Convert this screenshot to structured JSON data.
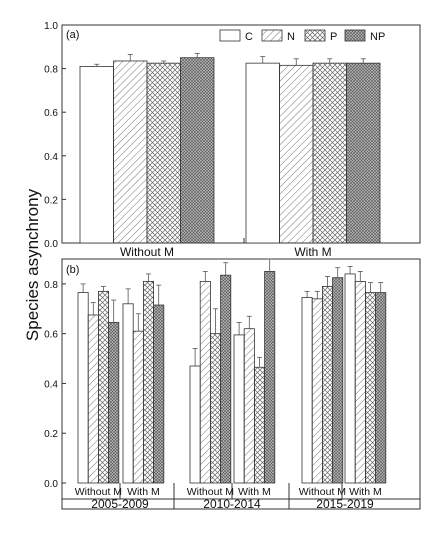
{
  "figure": {
    "ylabel": "Species asynchrony",
    "legend": [
      {
        "key": "C",
        "fill": "none"
      },
      {
        "key": "N",
        "fill": "diagonal"
      },
      {
        "key": "P",
        "fill": "crosshatch"
      },
      {
        "key": "NP",
        "fill": "dense"
      }
    ]
  },
  "chart_data": [
    {
      "type": "bar",
      "panel_label": "(a)",
      "categories": [
        "Without M",
        "With M"
      ],
      "series": [
        {
          "name": "C",
          "values": [
            0.81,
            0.825
          ],
          "errors": [
            0.01,
            0.03
          ]
        },
        {
          "name": "N",
          "values": [
            0.835,
            0.815
          ],
          "errors": [
            0.03,
            0.03
          ]
        },
        {
          "name": "P",
          "values": [
            0.825,
            0.825
          ],
          "errors": [
            0.01,
            0.02
          ]
        },
        {
          "name": "NP",
          "values": [
            0.85,
            0.825
          ],
          "errors": [
            0.02,
            0.02
          ]
        }
      ],
      "ylim": [
        0.0,
        1.0
      ],
      "yticks": [
        "0.0",
        "0.2",
        "0.4",
        "0.6",
        "0.8",
        "1.0"
      ],
      "legend_position": "top-right"
    },
    {
      "type": "bar",
      "panel_label": "(b)",
      "groups": [
        "2005-2009",
        "2010-2014",
        "2015-2019"
      ],
      "subcategories": [
        "Without M",
        "With M"
      ],
      "series": [
        {
          "name": "C",
          "values": [
            0.765,
            0.72,
            0.47,
            0.595,
            0.745,
            0.84
          ],
          "errors": [
            0.035,
            0.06,
            0.07,
            0.05,
            0.025,
            0.03
          ]
        },
        {
          "name": "N",
          "values": [
            0.675,
            0.61,
            0.81,
            0.62,
            0.74,
            0.81
          ],
          "errors": [
            0.05,
            0.07,
            0.04,
            0.05,
            0.03,
            0.04
          ]
        },
        {
          "name": "P",
          "values": [
            0.77,
            0.81,
            0.6,
            0.465,
            0.79,
            0.765
          ],
          "errors": [
            0.02,
            0.03,
            0.1,
            0.04,
            0.04,
            0.04
          ]
        },
        {
          "name": "NP",
          "values": [
            0.645,
            0.715,
            0.835,
            0.85,
            0.825,
            0.765
          ],
          "errors": [
            0.09,
            0.08,
            0.05,
            0.05,
            0.04,
            0.04
          ]
        }
      ],
      "ylim": [
        0.0,
        0.9
      ],
      "yticks": [
        "0.0",
        "0.2",
        "0.4",
        "0.6",
        "0.8"
      ]
    }
  ]
}
